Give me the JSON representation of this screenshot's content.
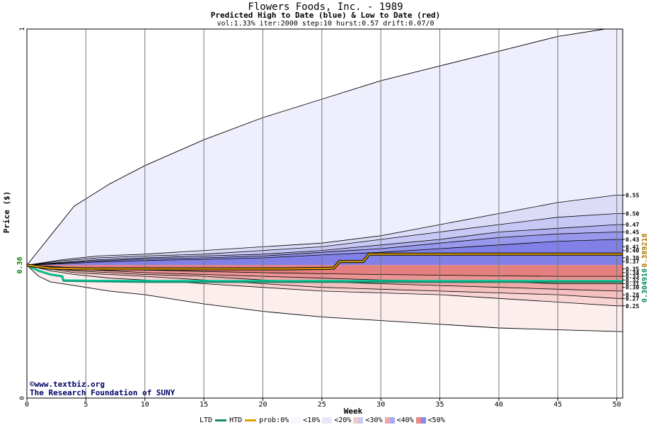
{
  "title": "Flowers Foods, Inc. - 1989",
  "subtitle": "Predicted High to Date (blue) &  Low to Date (red)",
  "params": "vol:1.33% iter:2000 step:10 hurst:0.57 drift:0.07/0",
  "credit_site": "©www.textbiz.org",
  "credit_org": "The Research Foundation of SUNY",
  "legend": {
    "ltd": "LTD",
    "htd": "HTD",
    "prob_prefix": "prob:0%",
    "bands": [
      "<10%",
      "<20%",
      "<30%",
      "<40%",
      "<50%"
    ]
  },
  "colors": {
    "htd": "#00c896",
    "ltd": "#1a8a6a",
    "prob": "#e0a000",
    "price_label": "#008000",
    "side_label_a": "#008866",
    "side_label_b": "#aa7700",
    "blue_fill_light": "#eeeefc",
    "red_fill_light": "#fdeeee"
  },
  "chart_data": {
    "type": "area",
    "xlabel": "Week",
    "ylabel": "Price ($)",
    "xlim": [
      0,
      50.5
    ],
    "ylim": [
      0,
      1
    ],
    "x_ticks": [
      0,
      5,
      10,
      15,
      20,
      25,
      30,
      35,
      40,
      45,
      50
    ],
    "y_tick_labels": [
      "0",
      "1"
    ],
    "start_price": 0.36,
    "start_price_label": "0.36",
    "right_labels": [
      "0.55",
      "0.50",
      "0.47",
      "0.45",
      "0.43",
      "0.41",
      "0.40",
      "0.38",
      "0.37",
      "0.35",
      "0.34",
      "0.33",
      "0.32",
      "0.31",
      "0.30",
      "0.28",
      "0.27",
      "0.25"
    ],
    "side_labels": [
      "0.304910",
      "0.389218"
    ],
    "high_envelope": {
      "x": [
        0,
        2,
        4,
        7,
        10,
        15,
        20,
        25,
        30,
        35,
        40,
        45,
        49,
        50.5
      ],
      "y": [
        0.36,
        0.44,
        0.52,
        0.58,
        0.63,
        0.7,
        0.76,
        0.81,
        0.86,
        0.9,
        0.94,
        0.98,
        1.0,
        1.0
      ]
    },
    "low_envelope": {
      "x": [
        0,
        1,
        2,
        4,
        7,
        10,
        15,
        20,
        25,
        30,
        35,
        40,
        45,
        50.5
      ],
      "y": [
        0.36,
        0.33,
        0.315,
        0.305,
        0.29,
        0.28,
        0.255,
        0.235,
        0.22,
        0.21,
        0.2,
        0.19,
        0.185,
        0.18
      ]
    },
    "blue_bands": [
      {
        "name": "<10%",
        "x": [
          0,
          3,
          6,
          10,
          15,
          20,
          25,
          30,
          35,
          40,
          45,
          50,
          50.5
        ],
        "y": [
          0.36,
          0.375,
          0.385,
          0.39,
          0.4,
          0.41,
          0.42,
          0.44,
          0.47,
          0.5,
          0.53,
          0.55,
          0.55
        ]
      },
      {
        "name": "<20%",
        "x": [
          0,
          3,
          6,
          10,
          15,
          20,
          25,
          30,
          35,
          40,
          45,
          50,
          50.5
        ],
        "y": [
          0.36,
          0.372,
          0.38,
          0.385,
          0.39,
          0.4,
          0.41,
          0.43,
          0.45,
          0.47,
          0.49,
          0.5,
          0.5
        ]
      },
      {
        "name": "<30%",
        "x": [
          0,
          3,
          6,
          10,
          15,
          20,
          25,
          30,
          35,
          40,
          45,
          50,
          50.5
        ],
        "y": [
          0.36,
          0.368,
          0.375,
          0.38,
          0.385,
          0.39,
          0.4,
          0.415,
          0.43,
          0.45,
          0.46,
          0.47,
          0.47
        ]
      },
      {
        "name": "<40%",
        "x": [
          0,
          3,
          6,
          10,
          15,
          20,
          25,
          30,
          35,
          40,
          45,
          50,
          50.5
        ],
        "y": [
          0.36,
          0.366,
          0.372,
          0.377,
          0.38,
          0.385,
          0.395,
          0.405,
          0.42,
          0.435,
          0.445,
          0.45,
          0.45
        ]
      },
      {
        "name": "<50%",
        "x": [
          0,
          3,
          6,
          10,
          15,
          20,
          25,
          30,
          35,
          40,
          45,
          50,
          50.5
        ],
        "y": [
          0.36,
          0.364,
          0.369,
          0.373,
          0.376,
          0.38,
          0.388,
          0.395,
          0.405,
          0.415,
          0.425,
          0.43,
          0.43
        ]
      }
    ],
    "red_bands": [
      {
        "name": "<10%",
        "x": [
          0,
          2,
          4,
          7,
          10,
          15,
          20,
          25,
          30,
          35,
          40,
          45,
          50,
          50.5
        ],
        "y": [
          0.36,
          0.345,
          0.335,
          0.325,
          0.32,
          0.31,
          0.3,
          0.29,
          0.285,
          0.28,
          0.27,
          0.26,
          0.25,
          0.25
        ]
      },
      {
        "name": "<20%",
        "x": [
          0,
          2,
          4,
          7,
          10,
          15,
          20,
          25,
          30,
          35,
          40,
          45,
          50,
          50.5
        ],
        "y": [
          0.36,
          0.35,
          0.34,
          0.335,
          0.33,
          0.32,
          0.31,
          0.3,
          0.295,
          0.29,
          0.285,
          0.28,
          0.27,
          0.27
        ]
      },
      {
        "name": "<30%",
        "x": [
          0,
          2,
          4,
          7,
          10,
          15,
          20,
          25,
          30,
          35,
          40,
          45,
          50,
          50.5
        ],
        "y": [
          0.36,
          0.352,
          0.345,
          0.34,
          0.335,
          0.33,
          0.32,
          0.315,
          0.31,
          0.305,
          0.3,
          0.295,
          0.29,
          0.29
        ]
      },
      {
        "name": "<40%",
        "x": [
          0,
          2,
          4,
          7,
          10,
          15,
          20,
          25,
          30,
          35,
          40,
          45,
          50,
          50.5
        ],
        "y": [
          0.36,
          0.355,
          0.35,
          0.345,
          0.34,
          0.335,
          0.33,
          0.325,
          0.32,
          0.318,
          0.315,
          0.31,
          0.31,
          0.31
        ]
      },
      {
        "name": "<50%",
        "x": [
          0,
          2,
          4,
          7,
          10,
          15,
          20,
          25,
          30,
          35,
          40,
          45,
          50,
          50.5
        ],
        "y": [
          0.36,
          0.357,
          0.353,
          0.35,
          0.347,
          0.343,
          0.34,
          0.337,
          0.335,
          0.333,
          0.331,
          0.33,
          0.33,
          0.33
        ]
      }
    ],
    "series": [
      {
        "name": "LTD",
        "x": [
          0,
          1,
          2,
          3,
          3.1,
          5,
          10,
          20,
          30,
          40,
          50,
          50.5
        ],
        "y": [
          0.36,
          0.345,
          0.335,
          0.33,
          0.318,
          0.317,
          0.315,
          0.315,
          0.315,
          0.315,
          0.315,
          0.315
        ]
      },
      {
        "name": "HTD",
        "x": [
          0,
          1,
          2,
          3,
          3.1,
          5,
          10,
          20,
          30,
          40,
          50,
          50.5
        ],
        "y": [
          0.36,
          0.345,
          0.335,
          0.33,
          0.32,
          0.319,
          0.318,
          0.318,
          0.318,
          0.318,
          0.318,
          0.318
        ]
      },
      {
        "name": "prob",
        "x": [
          0,
          2,
          5,
          10,
          22,
          26,
          26.5,
          28.5,
          29,
          40,
          50,
          50.5
        ],
        "y": [
          0.36,
          0.352,
          0.35,
          0.35,
          0.35,
          0.352,
          0.37,
          0.37,
          0.39,
          0.39,
          0.39,
          0.39
        ]
      }
    ]
  }
}
